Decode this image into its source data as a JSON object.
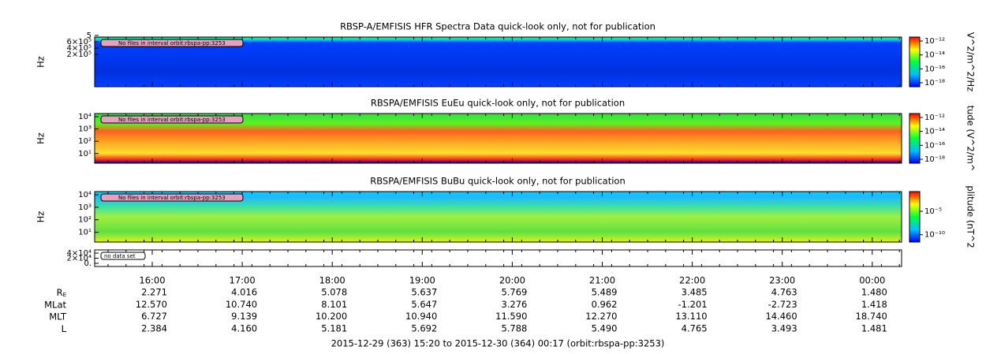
{
  "panels": [
    {
      "title": "RBSP-A/EMFISIS  HFR Spectra Data quick-look only, not for publication",
      "ylabel": "Hz",
      "yticks": [
        "5",
        "6×10⁵",
        "4×10⁵",
        "2×10⁵"
      ],
      "colorbar_ticks": [
        "10⁻¹²",
        "10⁻¹⁴",
        "10⁻¹⁶",
        "10⁻¹⁸"
      ],
      "colorbar_label": "V^2/m^2/Hz",
      "annotation": "No files in interval orbit:rbspa-pp:3253"
    },
    {
      "title": "RBSPA/EMFISIS  EuEu quick-look only, not for publication",
      "ylabel": "Hz",
      "yticks": [
        "10⁴",
        "10³",
        "10²",
        "10¹"
      ],
      "colorbar_ticks": [
        "10⁻¹²",
        "10⁻¹⁴",
        "10⁻¹⁶",
        "10⁻¹⁸"
      ],
      "colorbar_label": "tude (V^2/m^",
      "annotation": "No files in interval orbit:rbspa-pp:3253"
    },
    {
      "title": "RBSPA/EMFISIS  BuBu quick-look only, not for publication",
      "ylabel": "Hz",
      "yticks": [
        "10⁴",
        "10³",
        "10²",
        "10¹"
      ],
      "colorbar_ticks": [
        "10⁻⁵",
        "10⁻¹⁰"
      ],
      "colorbar_label": "plitude (nT^2",
      "annotation": "No files in interval orbit:rbspa-pp:3253"
    },
    {
      "yticks": [
        "4×10⁴",
        "2×10⁴",
        "0."
      ],
      "annotation": "no data set"
    }
  ],
  "x_ticks": [
    "16:00",
    "17:00",
    "18:00",
    "19:00",
    "20:00",
    "21:00",
    "22:00",
    "23:00",
    "00:00"
  ],
  "ephemeris": [
    {
      "label": "R",
      "subscript": "E",
      "values": [
        "2.271",
        "4.016",
        "5.078",
        "5.637",
        "5.769",
        "5.489",
        "3.485",
        "4.763",
        "1.480"
      ]
    },
    {
      "label": "MLat",
      "values": [
        "12.570",
        "10.740",
        "8.101",
        "5.647",
        "3.276",
        "0.962",
        "-1.201",
        "-2.723",
        "1.418"
      ]
    },
    {
      "label": "MLT",
      "values": [
        "6.727",
        "9.139",
        "10.200",
        "10.940",
        "11.590",
        "12.270",
        "13.110",
        "14.460",
        "18.740"
      ]
    },
    {
      "label": "L",
      "values": [
        "2.384",
        "4.160",
        "5.181",
        "5.692",
        "5.788",
        "5.490",
        "4.765",
        "3.493",
        "1.481"
      ]
    }
  ],
  "footer": "2015-12-29 (363) 15:20 to 2015-12-30 (364) 00:17 (orbit:rbspa-pp:3253)"
}
